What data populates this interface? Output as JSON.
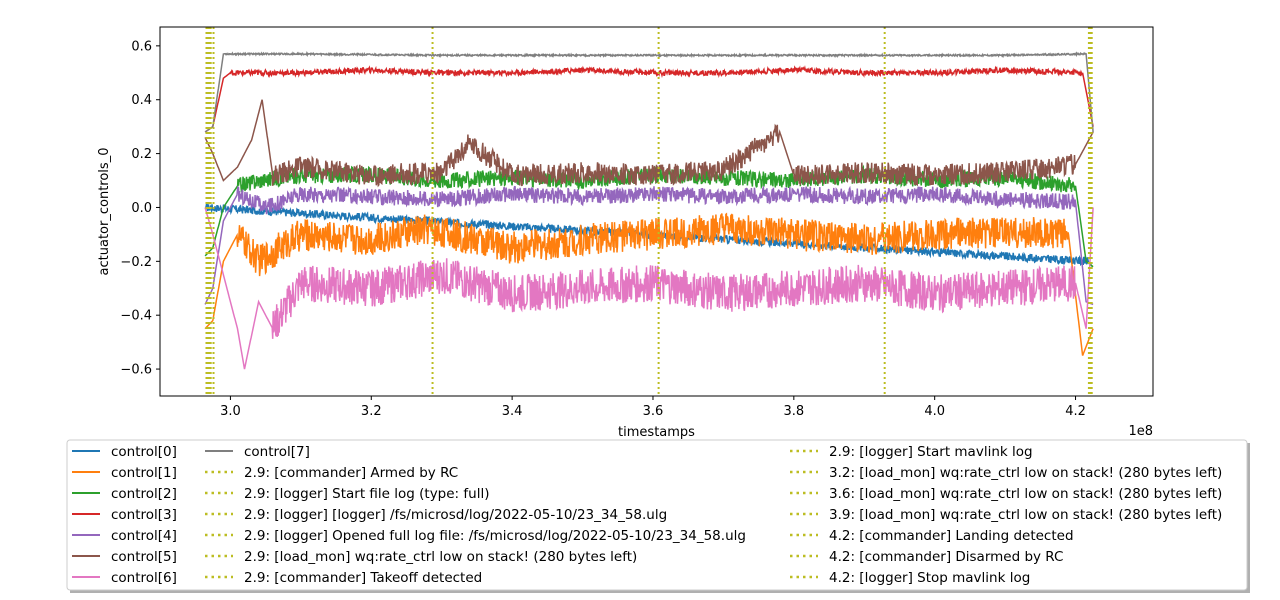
{
  "chart_data": {
    "type": "line",
    "xlabel": "timestamps",
    "ylabel": "actuator_controls_0",
    "x_offset_label": "1e8",
    "xlim": [
      290000000,
      431000000
    ],
    "ylim": [
      -0.7,
      0.67
    ],
    "x_tick_labels": [
      "3.0",
      "3.2",
      "3.4",
      "3.6",
      "3.8",
      "4.0",
      "4.2"
    ],
    "x_tick_values": [
      300000000,
      320000000,
      340000000,
      360000000,
      380000000,
      400000000,
      420000000
    ],
    "y_tick_labels": [
      "0.6",
      "0.4",
      "0.2",
      "0.0",
      "−0.2",
      "−0.4",
      "−0.6"
    ],
    "y_tick_values": [
      0.6,
      0.4,
      0.2,
      0.0,
      -0.2,
      -0.4,
      -0.6
    ],
    "grid": false,
    "legend_placement": "below-plot",
    "series": [
      {
        "name": "control[0]",
        "color": "#1f77b4",
        "x": [
          296400000,
          296600000,
          421800000,
          422400000
        ],
        "y": [
          0.0,
          0.0,
          -0.2,
          -0.22
        ]
      },
      {
        "name": "control[1]",
        "color": "#ff7f0e",
        "x": [
          296400000,
          297500000,
          299000000,
          301000000,
          304000000,
          310000000,
          320000000,
          328000000,
          340000000,
          350000000,
          360000000,
          370000000,
          380000000,
          390000000,
          400000000,
          410000000,
          419000000,
          421000000,
          422500000
        ],
        "y": [
          -0.45,
          -0.42,
          -0.2,
          -0.1,
          -0.2,
          -0.1,
          -0.12,
          -0.08,
          -0.15,
          -0.12,
          -0.1,
          -0.08,
          -0.1,
          -0.12,
          -0.1,
          -0.09,
          -0.1,
          -0.55,
          -0.45
        ]
      },
      {
        "name": "control[2]",
        "color": "#2ca02c",
        "x": [
          296400000,
          297500000,
          299000000,
          301000000,
          304000000,
          310000000,
          320000000,
          330000000,
          340000000,
          350000000,
          360000000,
          370000000,
          380000000,
          390000000,
          400000000,
          410000000,
          420000000,
          421500000,
          422500000
        ],
        "y": [
          -0.18,
          -0.15,
          0.0,
          0.08,
          0.1,
          0.12,
          0.12,
          0.1,
          0.11,
          0.1,
          0.12,
          0.11,
          0.1,
          0.12,
          0.1,
          0.11,
          0.08,
          -0.2,
          -0.22
        ]
      },
      {
        "name": "control[3]",
        "color": "#d62728",
        "x": [
          296400000,
          297500000,
          299000000,
          300000000,
          310000000,
          320000000,
          330000000,
          340000000,
          350000000,
          360000000,
          370000000,
          380000000,
          390000000,
          400000000,
          410000000,
          421000000,
          422500000
        ],
        "y": [
          0.28,
          0.3,
          0.48,
          0.5,
          0.5,
          0.51,
          0.5,
          0.5,
          0.51,
          0.5,
          0.5,
          0.51,
          0.5,
          0.5,
          0.51,
          0.5,
          0.3
        ]
      },
      {
        "name": "control[4]",
        "color": "#9467bd",
        "x": [
          296400000,
          297500000,
          299000000,
          301000000,
          305000000,
          310000000,
          320000000,
          330000000,
          340000000,
          350000000,
          360000000,
          370000000,
          380000000,
          390000000,
          400000000,
          410000000,
          420000000,
          421500000,
          422500000
        ],
        "y": [
          -0.36,
          -0.3,
          -0.05,
          0.05,
          0.0,
          0.05,
          0.04,
          0.03,
          0.05,
          0.04,
          0.05,
          0.04,
          0.05,
          0.04,
          0.05,
          0.03,
          0.02,
          -0.35,
          -0.36
        ]
      },
      {
        "name": "control[5]",
        "color": "#8c564b",
        "x": [
          296400000,
          297500000,
          299000000,
          301000000,
          303000000,
          304500000,
          306000000,
          310000000,
          320000000,
          330000000,
          334000000,
          340000000,
          350000000,
          360000000,
          370000000,
          378000000,
          380000000,
          390000000,
          400000000,
          410000000,
          420000000,
          422500000
        ],
        "y": [
          0.26,
          0.2,
          0.1,
          0.15,
          0.25,
          0.4,
          0.12,
          0.15,
          0.12,
          0.13,
          0.24,
          0.12,
          0.13,
          0.12,
          0.14,
          0.28,
          0.12,
          0.13,
          0.12,
          0.13,
          0.16,
          0.28
        ]
      },
      {
        "name": "control[6]",
        "color": "#e377c2",
        "x": [
          296400000,
          297500000,
          299000000,
          301000000,
          302000000,
          304000000,
          306000000,
          310000000,
          320000000,
          330000000,
          340000000,
          350000000,
          360000000,
          370000000,
          380000000,
          390000000,
          400000000,
          410000000,
          420000000,
          421500000,
          422500000
        ],
        "y": [
          0.0,
          -0.1,
          -0.25,
          -0.45,
          -0.6,
          -0.35,
          -0.45,
          -0.28,
          -0.3,
          -0.25,
          -0.32,
          -0.3,
          -0.28,
          -0.32,
          -0.3,
          -0.28,
          -0.32,
          -0.3,
          -0.28,
          -0.45,
          0.0
        ]
      },
      {
        "name": "control[7]",
        "color": "#7f7f7f",
        "x": [
          296400000,
          297500000,
          299000000,
          310000000,
          330000000,
          350000000,
          370000000,
          390000000,
          410000000,
          421500000,
          422500000
        ],
        "y": [
          0.28,
          0.3,
          0.57,
          0.57,
          0.565,
          0.565,
          0.565,
          0.565,
          0.565,
          0.57,
          0.28
        ]
      }
    ],
    "vertical_markers": [
      {
        "x": 296600000,
        "label": "2.9: [commander] Armed by RC"
      },
      {
        "x": 296700000,
        "label": "2.9: [logger] Start file log (type: full)"
      },
      {
        "x": 296800000,
        "label": "2.9: [logger] [logger] /fs/microsd/log/2022-05-10/23_34_58.ulg"
      },
      {
        "x": 296900000,
        "label": "2.9: [logger] Opened full log file: /fs/microsd/log/2022-05-10/23_34_58.ulg"
      },
      {
        "x": 297000000,
        "label": "2.9: [load_mon] wq:rate_ctrl low on stack! (280 bytes left)"
      },
      {
        "x": 297600000,
        "label": "2.9: [commander] Takeoff detected"
      },
      {
        "x": 297200000,
        "label": "2.9: [logger] Start mavlink log"
      },
      {
        "x": 328700000,
        "label": "3.2: [load_mon] wq:rate_ctrl low on stack! (280 bytes left)"
      },
      {
        "x": 360800000,
        "label": "3.6: [load_mon] wq:rate_ctrl low on stack! (280 bytes left)"
      },
      {
        "x": 392900000,
        "label": "3.9: [load_mon] wq:rate_ctrl low on stack! (280 bytes left)"
      },
      {
        "x": 421900000,
        "label": "4.2: [commander] Landing detected"
      },
      {
        "x": 422100000,
        "label": "4.2: [commander] Disarmed by RC"
      },
      {
        "x": 422300000,
        "label": "4.2: [logger] Stop mavlink log"
      }
    ],
    "marker_color": "#bcbd22"
  }
}
